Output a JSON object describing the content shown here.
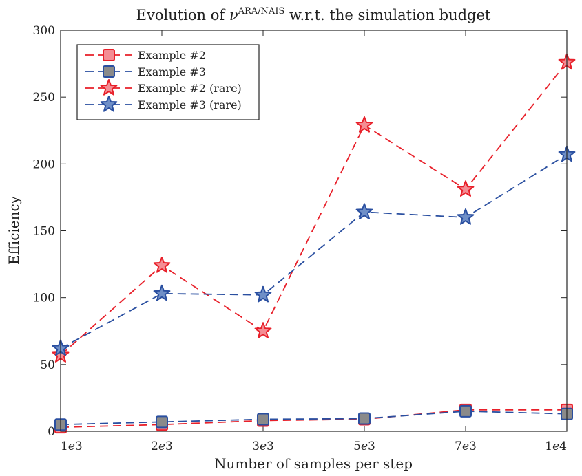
{
  "chart_data": {
    "type": "line",
    "title_main": "Evolution of ",
    "title_symbol": "ν",
    "title_superscript": "ARA/NAIS",
    "title_rest": " w.r.t. the simulation budget",
    "xlabel": "Number of samples per step",
    "ylabel": "Efficiency",
    "categories": [
      "1e3",
      "2e3",
      "3e3",
      "5e3",
      "7e3",
      "1e4"
    ],
    "x_tick_mantissa": [
      "1",
      "2",
      "3",
      "5",
      "7",
      "1"
    ],
    "x_tick_exponent": [
      "3",
      "3",
      "3",
      "3",
      "3",
      "4"
    ],
    "ylim": [
      0,
      300
    ],
    "yticks": [
      0,
      50,
      100,
      150,
      200,
      250,
      300
    ],
    "grid": false,
    "legend_position": "top-left",
    "series": [
      {
        "name": "Example #2",
        "marker": "square",
        "line_color": "#e8202a",
        "fill_color": "#f48d94",
        "edge_color": "#e8202a",
        "values": [
          3,
          5,
          8,
          9,
          16,
          16
        ]
      },
      {
        "name": "Example #3",
        "marker": "square",
        "line_color": "#2a4fa0",
        "fill_color": "#8a8a8a",
        "edge_color": "#2a4fa0",
        "values": [
          5,
          7,
          9,
          9.5,
          15,
          13
        ]
      },
      {
        "name": "Example #2 (rare)",
        "marker": "star",
        "line_color": "#e8202a",
        "fill_color": "#f48d94",
        "edge_color": "#e8202a",
        "values": [
          57,
          124,
          75,
          229,
          181,
          276
        ]
      },
      {
        "name": "Example #3 (rare)",
        "marker": "star",
        "line_color": "#2a4fa0",
        "fill_color": "#6f8fc7",
        "edge_color": "#2a4fa0",
        "values": [
          62,
          103,
          102,
          164,
          160,
          207
        ]
      }
    ]
  }
}
